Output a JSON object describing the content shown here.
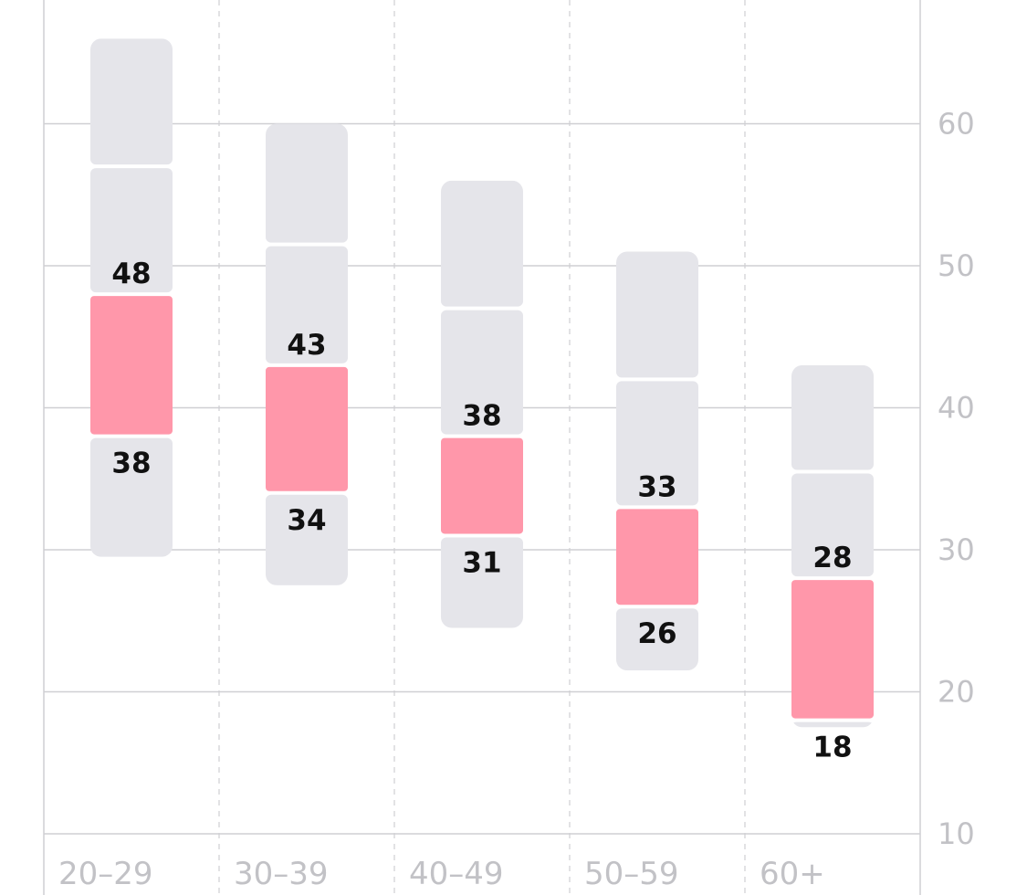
{
  "chart_data": {
    "type": "bar",
    "subtype": "range-band",
    "categories": [
      "20–29",
      "30–39",
      "40–49",
      "50–59",
      "60+"
    ],
    "ranges": [
      {
        "category": "20–29",
        "outer_low": 29.5,
        "inner_low": 38,
        "inner_high": 48,
        "outer_high": 66
      },
      {
        "category": "30–39",
        "outer_low": 27.5,
        "inner_low": 34,
        "inner_high": 43,
        "outer_high": 60
      },
      {
        "category": "40–49",
        "outer_low": 24.5,
        "inner_low": 31,
        "inner_high": 38,
        "outer_high": 56
      },
      {
        "category": "50–59",
        "outer_low": 21.5,
        "inner_low": 26,
        "inner_high": 33,
        "outer_high": 51
      },
      {
        "category": "60+",
        "outer_low": 17.5,
        "inner_low": 18,
        "inner_high": 28,
        "outer_high": 43
      }
    ],
    "y_ticks": [
      "10",
      "20",
      "30",
      "40",
      "50",
      "60"
    ],
    "ylim": [
      10,
      68
    ],
    "y_axis_side": "right",
    "grid": {
      "horizontal": "solid",
      "vertical": "dashed"
    },
    "colors": {
      "highlight": "#ff97aa",
      "band": "#e5e5ea",
      "grid": "#cfcfd3",
      "tick_text": "#c2c2c6",
      "value_text": "#111111"
    }
  }
}
